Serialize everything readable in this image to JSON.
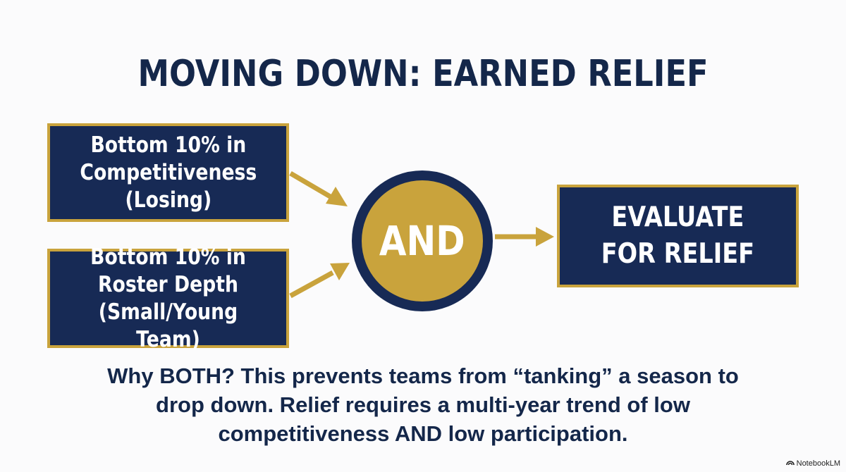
{
  "title": "MOVING DOWN: EARNED RELIEF",
  "conditions": [
    {
      "lines": [
        "Bottom 10% in",
        "Competitiveness",
        "(Losing)"
      ]
    },
    {
      "lines": [
        "Bottom 10% in",
        "Roster Depth",
        "(Small/Young Team)"
      ]
    }
  ],
  "connector": "AND",
  "result": {
    "lines": [
      "EVALUATE",
      "FOR RELIEF"
    ]
  },
  "caption": {
    "lines": [
      "Why BOTH? This prevents teams from “tanking” a season to",
      "drop down. Relief requires a multi-year trend of low",
      "competitiveness AND low participation."
    ]
  },
  "branding": {
    "label": "NotebookLM",
    "icon": "notebooklm-icon"
  },
  "colors": {
    "navy": "#172a55",
    "gold": "#c9a33c",
    "background": "#fbfbfc"
  }
}
